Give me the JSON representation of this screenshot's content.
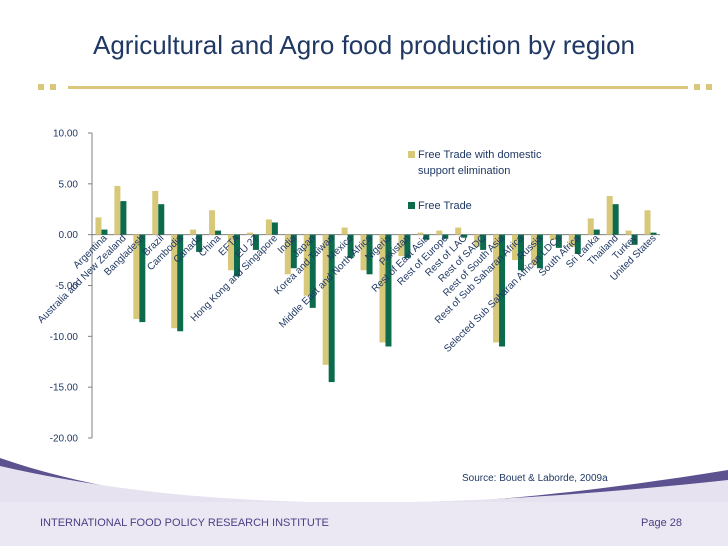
{
  "slide": {
    "title": "Agricultural and Agro food production by region",
    "source": "Source: Bouet & Laborde, 2009a",
    "footer": "INTERNATIONAL FOOD POLICY RESEARCH INSTITUTE",
    "page": "Page 28"
  },
  "colors": {
    "series1": "#d8c879",
    "series2": "#0c6b4c",
    "axis": "#808080",
    "text": "#1f3864"
  },
  "chart_data": {
    "type": "bar",
    "title": "Agricultural and Agro food production by region",
    "ylim": [
      -20,
      10
    ],
    "yticks": [
      10,
      5,
      0,
      -5,
      -10,
      -15,
      -20
    ],
    "ytick_labels": [
      "10.00",
      "5.00",
      "0.00",
      "-5.00",
      "-10.00",
      "-15.00",
      "-20.00"
    ],
    "legend": "right",
    "categories": [
      "Argentina",
      "Australia and New Zealand",
      "Bangladesh",
      "Brazil",
      "Cambodia",
      "Canada",
      "China",
      "EFTA",
      "EU 27",
      "Hong Kong and Singapore",
      "India",
      "Japan",
      "Korea and Taiwan",
      "Mexico",
      "Middle East and North Africa",
      "Nigeria",
      "Pakistan",
      "Rest of East Asia",
      "Rest of Europe",
      "Rest of LAC",
      "Rest of SADC",
      "Rest of South Asia",
      "Rest of Sub Saharan Africa",
      "Russia",
      "Selected Sub Saharan African LDCs",
      "South Africa",
      "Sri Lanka",
      "Thailand",
      "Turkey",
      "United States"
    ],
    "series": [
      {
        "name": "Free Trade with domestic support elimination",
        "values": [
          1.7,
          4.8,
          -8.3,
          4.3,
          -9.2,
          0.5,
          2.4,
          -3.5,
          0.2,
          1.5,
          -3.9,
          -6.0,
          -12.8,
          0.7,
          -3.5,
          -10.6,
          -2.1,
          0.2,
          0.4,
          0.7,
          -1.2,
          -10.6,
          -2.5,
          -3.0,
          -0.5,
          -1.2,
          1.6,
          3.8,
          0.4,
          2.4
        ]
      },
      {
        "name": "Free Trade",
        "values": [
          0.5,
          3.3,
          -8.6,
          3.0,
          -9.5,
          -1.7,
          0.4,
          -4.1,
          -1.5,
          1.2,
          -3.3,
          -7.2,
          -14.5,
          -2.3,
          -3.9,
          -11.0,
          -2.3,
          -0.5,
          -0.4,
          -0.3,
          -1.5,
          -11.0,
          -3.5,
          -3.3,
          -1.3,
          -1.9,
          0.5,
          3.0,
          -1.0,
          0.2
        ]
      }
    ]
  }
}
